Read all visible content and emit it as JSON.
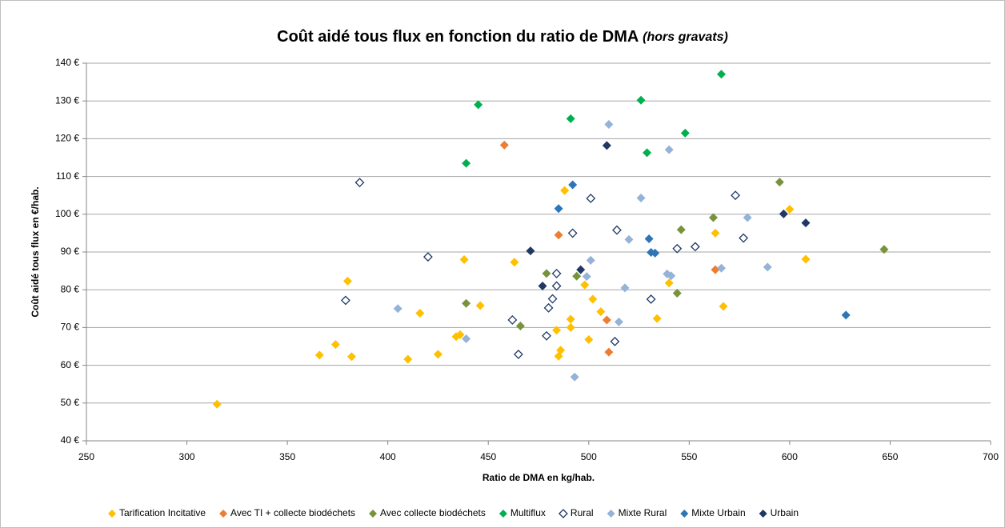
{
  "chart_data": {
    "type": "scatter",
    "title": "Coût aidé tous flux en fonction du ratio de DMA",
    "title_note": "(hors gravats)",
    "x_label": "Ratio de DMA en kg/hab.",
    "y_label": "Coût aidé tous flux en €/hab.",
    "xlim": [
      250,
      700
    ],
    "xticks": [
      250,
      300,
      350,
      400,
      450,
      500,
      550,
      600,
      650,
      700
    ],
    "ylim": [
      40,
      140
    ],
    "yticks": [
      {
        "value": 40,
        "label": "40 €"
      },
      {
        "value": 50,
        "label": "50 €"
      },
      {
        "value": 60,
        "label": "60 €"
      },
      {
        "value": 70,
        "label": "70 €"
      },
      {
        "value": 80,
        "label": "80 €"
      },
      {
        "value": 90,
        "label": "90 €"
      },
      {
        "value": 100,
        "label": "100 €"
      },
      {
        "value": 110,
        "label": "110 €"
      },
      {
        "value": 120,
        "label": "120 €"
      },
      {
        "value": 130,
        "label": "130 €"
      },
      {
        "value": 140,
        "label": "140 €"
      }
    ],
    "grid": true,
    "legend": "bottom",
    "series": [
      {
        "name": "Tarification Incitative",
        "color": "#FFC000",
        "x": [
          315,
          366,
          374,
          380,
          382,
          410,
          416,
          425,
          434,
          436,
          438,
          446,
          463,
          484,
          485,
          486,
          488,
          491,
          491,
          498,
          500,
          502,
          506,
          534,
          540,
          563,
          567,
          600,
          608
        ],
        "values": [
          49.7,
          62.7,
          65.5,
          82.3,
          62.3,
          61.6,
          73.8,
          62.9,
          67.6,
          68.1,
          88,
          75.8,
          87.3,
          69.3,
          62.4,
          64,
          106.3,
          72.2,
          70,
          81.3,
          66.8,
          77.5,
          74.2,
          72.4,
          81.8,
          95,
          75.6,
          101.3,
          88.1
        ]
      },
      {
        "name": "Avec TI + collecte biodéchets",
        "color": "#ED7D31",
        "x": [
          458,
          485,
          509,
          510,
          563
        ],
        "values": [
          118.3,
          94.5,
          72,
          63.5,
          85.3
        ]
      },
      {
        "name": "Avec collecte biodéchets",
        "color": "#77933C",
        "x": [
          439,
          466,
          479,
          494,
          544,
          546,
          562,
          595,
          647
        ],
        "values": [
          76.4,
          70.4,
          84.3,
          83.6,
          79.1,
          95.9,
          99.1,
          108.5,
          90.7
        ]
      },
      {
        "name": "Multiflux",
        "color": "#00B050",
        "x": [
          439,
          445,
          491,
          526,
          529,
          548,
          566
        ],
        "values": [
          113.5,
          129,
          125.3,
          130.2,
          116.3,
          121.5,
          137.1
        ]
      },
      {
        "name": "Rural",
        "color": "#1F3864",
        "hollow": true,
        "x": [
          379,
          386,
          420,
          462,
          465,
          479,
          480,
          482,
          484,
          484,
          492,
          501,
          513,
          514,
          531,
          544,
          553,
          573,
          577
        ],
        "values": [
          77.2,
          108.4,
          88.7,
          72,
          62.9,
          67.8,
          75.2,
          77.6,
          84.3,
          81,
          95,
          104.2,
          66.3,
          95.8,
          77.5,
          90.9,
          91.4,
          105,
          93.7
        ]
      },
      {
        "name": "Mixte Rural",
        "color": "#95B3D7",
        "x": [
          405,
          439,
          493,
          499,
          501,
          510,
          515,
          518,
          520,
          526,
          539,
          540,
          541,
          566,
          579,
          589
        ],
        "values": [
          75,
          67,
          56.9,
          83.5,
          87.8,
          123.8,
          71.5,
          80.5,
          93.3,
          104.3,
          84.2,
          117.1,
          83.7,
          85.7,
          99.1,
          86
        ]
      },
      {
        "name": "Mixte Urbain",
        "color": "#2E75B6",
        "x": [
          485,
          492,
          530,
          531,
          533,
          628
        ],
        "values": [
          101.5,
          107.8,
          93.5,
          89.9,
          89.7,
          73.3
        ]
      },
      {
        "name": "Urbain",
        "color": "#1F3864",
        "x": [
          471,
          477,
          496,
          509,
          597,
          608
        ],
        "values": [
          90.3,
          81,
          85.3,
          118.2,
          100.1,
          97.7
        ]
      }
    ]
  }
}
